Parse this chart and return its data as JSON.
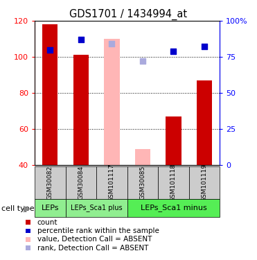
{
  "title": "GDS1701 / 1434994_at",
  "samples": [
    "GSM30082",
    "GSM30084",
    "GSM101117",
    "GSM30085",
    "GSM101118",
    "GSM101119"
  ],
  "bar_data": [
    {
      "sample": "GSM30082",
      "count_value": 118,
      "rank_value": 80,
      "absent": false
    },
    {
      "sample": "GSM30084",
      "count_value": 101,
      "rank_value": 87,
      "absent": false
    },
    {
      "sample": "GSM101117",
      "absent_value": 110,
      "absent_rank": 84,
      "absent": true
    },
    {
      "sample": "GSM30085",
      "absent_value": 49,
      "absent_rank": 72,
      "absent": true
    },
    {
      "sample": "GSM101118",
      "count_value": 67,
      "rank_value": 79,
      "absent": false
    },
    {
      "sample": "GSM101119",
      "count_value": 87,
      "rank_value": 82,
      "absent": false
    }
  ],
  "ct_layout": [
    {
      "label": "LEPs",
      "start": 0,
      "end": 1,
      "fontsize": 8,
      "color": "#90EE90",
      "label_fontsize": 8
    },
    {
      "label": "LEPs_Sca1 plus",
      "start": 1,
      "end": 3,
      "fontsize": 7,
      "color": "#90EE90",
      "label_fontsize": 7
    },
    {
      "label": "LEPs_Sca1 minus",
      "start": 3,
      "end": 6,
      "fontsize": 8,
      "color": "#55EE55",
      "label_fontsize": 8
    }
  ],
  "ylim_left": [
    40,
    120
  ],
  "ylim_right": [
    0,
    100
  ],
  "yticks_left": [
    40,
    60,
    80,
    100,
    120
  ],
  "yticks_right": [
    0,
    25,
    50,
    75,
    100
  ],
  "yticklabels_right": [
    "0",
    "25",
    "50",
    "75",
    "100%"
  ],
  "bar_color_present": "#CC0000",
  "bar_color_absent": "#FFB6B6",
  "rank_color_present": "#0000CC",
  "rank_color_absent": "#AAAADD",
  "bar_width": 0.5,
  "rank_marker_size": 40,
  "legend_items": [
    {
      "label": "count",
      "color": "#CC0000"
    },
    {
      "label": "percentile rank within the sample",
      "color": "#0000CC"
    },
    {
      "label": "value, Detection Call = ABSENT",
      "color": "#FFB6B6"
    },
    {
      "label": "rank, Detection Call = ABSENT",
      "color": "#AAAADD"
    }
  ]
}
